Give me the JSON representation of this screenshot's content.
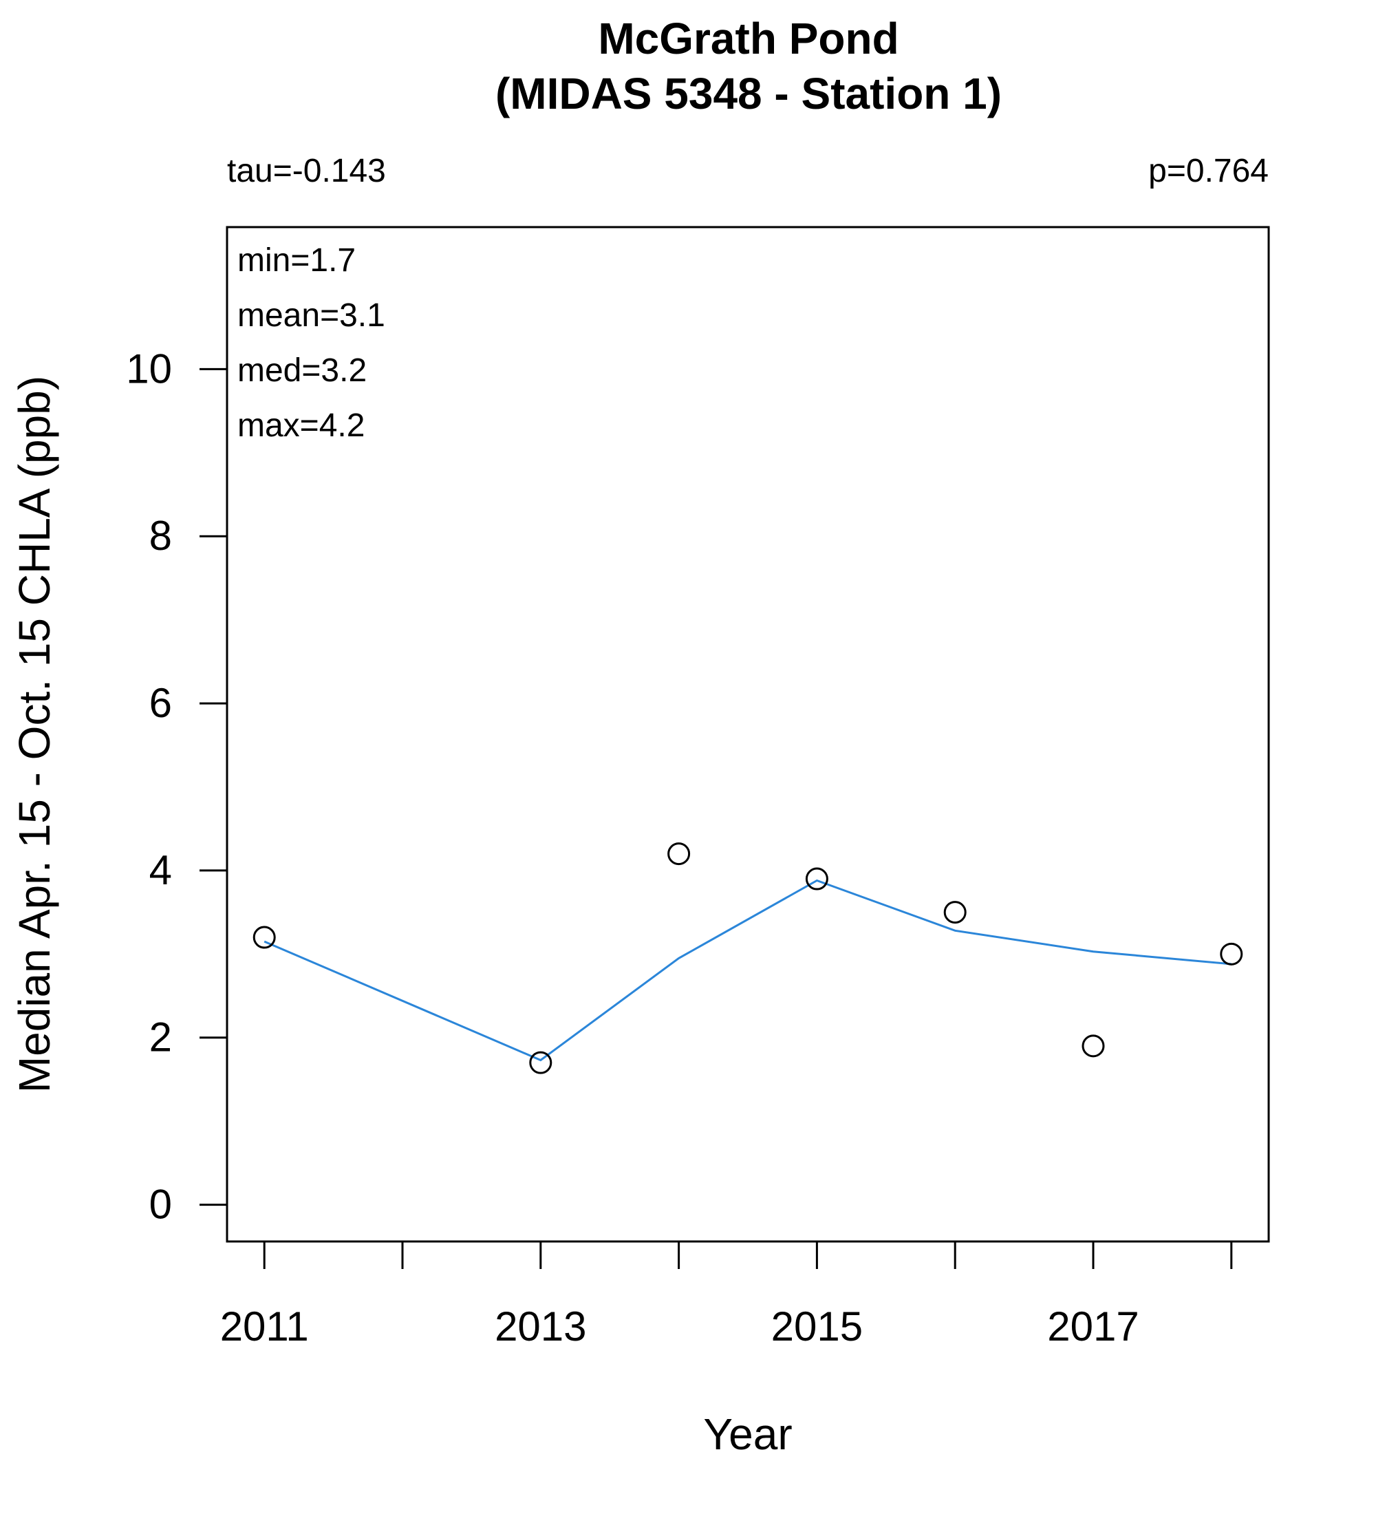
{
  "chart_data": {
    "type": "scatter",
    "title": "McGrath Pond",
    "subtitle": "(MIDAS 5348 - Station 1)",
    "xlabel": "Year",
    "ylabel": "Median Apr. 15 - Oct. 15 CHLA (ppb)",
    "xlim": [
      2010.73,
      2018.27
    ],
    "ylim": [
      -0.44,
      11.7
    ],
    "x_ticks": [
      2011,
      2012,
      2013,
      2014,
      2015,
      2016,
      2017,
      2018
    ],
    "x_tick_labels": [
      {
        "value": 2011,
        "label": "2011"
      },
      {
        "value": 2013,
        "label": "2013"
      },
      {
        "value": 2015,
        "label": "2015"
      },
      {
        "value": 2017,
        "label": "2017"
      }
    ],
    "y_ticks": [
      {
        "value": 0,
        "label": "0"
      },
      {
        "value": 2,
        "label": "2"
      },
      {
        "value": 4,
        "label": "4"
      },
      {
        "value": 6,
        "label": "6"
      },
      {
        "value": 8,
        "label": "8"
      },
      {
        "value": 10,
        "label": "10"
      }
    ],
    "points": {
      "x": [
        2011,
        2013,
        2014,
        2015,
        2016,
        2017,
        2018
      ],
      "y": [
        3.2,
        1.7,
        4.2,
        3.9,
        3.5,
        1.9,
        3.0
      ]
    },
    "smooth": {
      "x": [
        2011,
        2013,
        2014,
        2015,
        2016,
        2017,
        2018
      ],
      "y": [
        3.15,
        1.73,
        2.95,
        3.88,
        3.28,
        3.03,
        2.88
      ],
      "color": "#2b86d9"
    },
    "stats_text": {
      "tau": "tau=-0.143",
      "p": "p=0.764",
      "min": "min=1.7",
      "mean": "mean=3.1",
      "med": "med=3.2",
      "max": "max=4.2"
    },
    "grid": false,
    "legend": "none"
  }
}
